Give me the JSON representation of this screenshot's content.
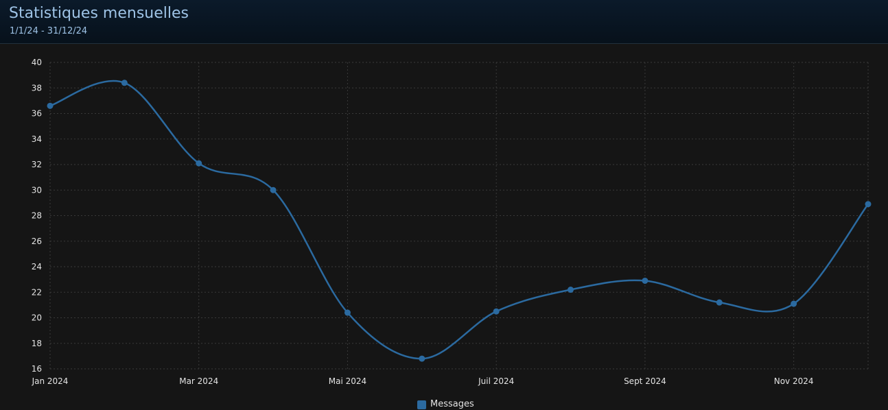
{
  "header": {
    "title": "Statistiques mensuelles",
    "subtitle": "1/1/24 - 31/12/24"
  },
  "colors": {
    "series": "#2b6aa0",
    "grid": "#3a3a3a",
    "background": "#151515"
  },
  "chart_data": {
    "type": "line",
    "title": "Statistiques mensuelles",
    "subtitle": "1/1/24 - 31/12/24",
    "x": [
      "2024-01",
      "2024-02",
      "2024-03",
      "2024-04",
      "2024-05",
      "2024-06",
      "2024-07",
      "2024-08",
      "2024-09",
      "2024-10",
      "2024-11",
      "2024-12"
    ],
    "x_tick_labels": [
      "Jan 2024",
      "Mar 2024",
      "Mai 2024",
      "Juil 2024",
      "Sept 2024",
      "Nov 2024"
    ],
    "x_tick_positions": [
      "2024-01",
      "2024-03",
      "2024-05",
      "2024-07",
      "2024-09",
      "2024-11"
    ],
    "series": [
      {
        "name": "Messages",
        "values": [
          36.6,
          38.4,
          32.1,
          30.0,
          20.4,
          16.8,
          20.5,
          22.2,
          22.9,
          21.2,
          21.1,
          28.9
        ]
      }
    ],
    "ylim": [
      16,
      40
    ],
    "y_ticks": [
      16,
      18,
      20,
      22,
      24,
      26,
      28,
      30,
      32,
      34,
      36,
      38,
      40
    ],
    "xlabel": "",
    "ylabel": "",
    "grid": true,
    "legend": "bottom-center"
  }
}
